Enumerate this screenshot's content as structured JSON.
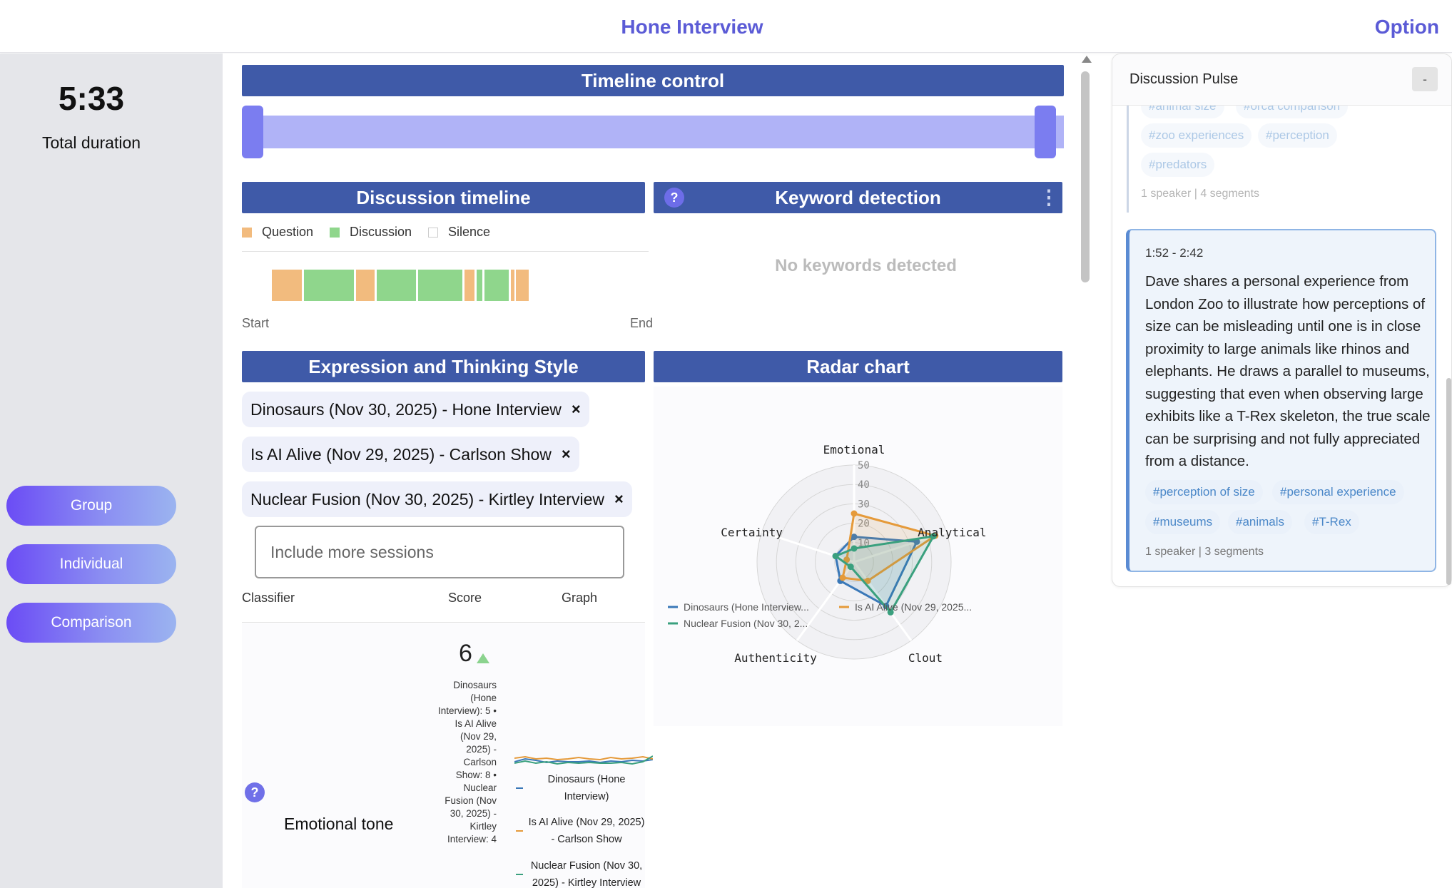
{
  "header": {
    "title": "Hone Interview",
    "option_label": "Option"
  },
  "sidebar": {
    "duration": "5:33",
    "duration_label": "Total duration",
    "nav": [
      "Group",
      "Individual",
      "Comparison"
    ]
  },
  "timeline_control": {
    "title": "Timeline control"
  },
  "discussion_timeline": {
    "title": "Discussion timeline",
    "legend": [
      {
        "label": "Question",
        "color": "#f2bb7e"
      },
      {
        "label": "Discussion",
        "color": "#8fd68c"
      },
      {
        "label": "Silence",
        "color": "#ffffff"
      }
    ],
    "start_label": "Start",
    "end_label": "End"
  },
  "keyword_detection": {
    "title": "Keyword detection",
    "empty": "No keywords detected"
  },
  "expression": {
    "title": "Expression and Thinking Style",
    "sessions": [
      "Dinosaurs (Nov 30, 2025) - Hone Interview",
      "Is AI Alive (Nov 29, 2025) - Carlson Show",
      "Nuclear Fusion (Nov 30, 2025) - Kirtley Interview"
    ],
    "remove_symbol": "×",
    "include_placeholder": "Include more sessions",
    "columns": [
      "Classifier",
      "Score",
      "Graph"
    ],
    "row": {
      "classifier": "Emotional tone",
      "score": "6",
      "score_desc": "Dinosaurs (Hone Interview): 5 • Is AI Alive (Nov 29, 2025) - Carlson Show: 8 • Nuclear Fusion (Nov 30, 2025) - Kirtley Interview: 4",
      "graph_legend": [
        "Dinosaurs (Hone Interview)",
        "Is AI Alive (Nov 29, 2025) - Carlson Show",
        "Nuclear Fusion (Nov 30, 2025) - Kirtley Interview"
      ]
    }
  },
  "radar": {
    "title": "Radar chart",
    "axes": [
      "Emotional",
      "Analytical",
      "Clout",
      "Authenticity",
      "Certainty"
    ],
    "ticks": [
      "10",
      "20",
      "30",
      "40",
      "50"
    ],
    "max": 50,
    "series": [
      {
        "name": "Dinosaurs (Hone Interview...",
        "color": "#3a78b8",
        "values": [
          13,
          34,
          28,
          12,
          10
        ]
      },
      {
        "name": "Is AI Alive (Nov 29, 2025...",
        "color": "#e59a3a",
        "values": [
          25,
          44,
          12,
          10,
          4
        ]
      },
      {
        "name": "Nuclear Fusion (Nov 30, 2...",
        "color": "#3aa07e",
        "values": [
          7,
          43,
          32,
          3,
          10
        ]
      }
    ]
  },
  "help_symbol": "?",
  "menu_symbol": "⋮",
  "pulse": {
    "title": "Discussion Pulse",
    "collapse_label": "-",
    "prev_segment": {
      "tags": [
        "#animal size",
        "#orca comparison",
        "#zoo experiences",
        "#perception",
        "#predators"
      ],
      "meta": "1 speaker | 4 segments"
    },
    "segment": {
      "time": "1:52 - 2:42",
      "text": "Dave shares a personal experience from London Zoo to illustrate how perceptions of size can be misleading until one is in close proximity to large animals like rhinos and elephants. He draws a parallel to museums, suggesting that even when observing large exhibits like a T-Rex skeleton, the true scale can be surprising and not fully appreciated from a distance.",
      "tags": [
        "#perception of size",
        "#personal experience",
        "#museums",
        "#animals",
        "#T-Rex"
      ],
      "meta": "1 speaker | 3 segments"
    }
  }
}
